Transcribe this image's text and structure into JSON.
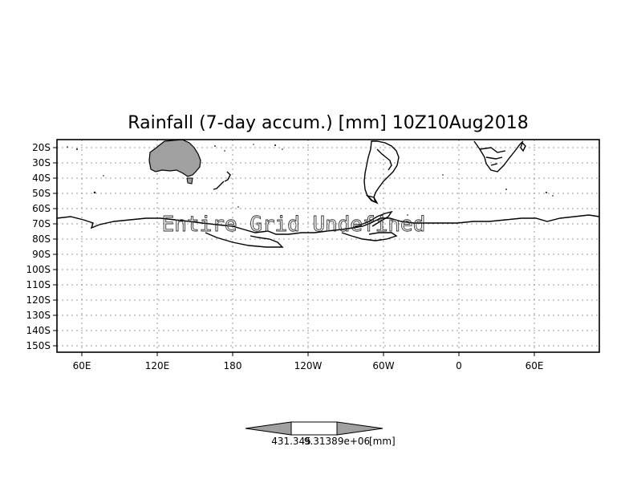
{
  "map": {
    "title": "Rainfall (7-day accum.) [mm] 10Z10Aug2018",
    "lat_labels": [
      "20S",
      "30S",
      "40S",
      "50S",
      "60S",
      "70S",
      "80S",
      "90S",
      "100S",
      "110S",
      "120S",
      "130S",
      "140S",
      "150S"
    ],
    "lon_labels": [
      "60E",
      "120E",
      "180",
      "120W",
      "60W",
      "0",
      "60E"
    ],
    "overlay_text": "Entire Grid Undefined",
    "colorbar": {
      "left_value": "431.345",
      "mid_value": "9.31389e+06",
      "unit": "[mm]",
      "arrow_color": "#a0a0a0",
      "center_color": "#ffffff"
    },
    "land_fill": "#a0a0a0"
  }
}
